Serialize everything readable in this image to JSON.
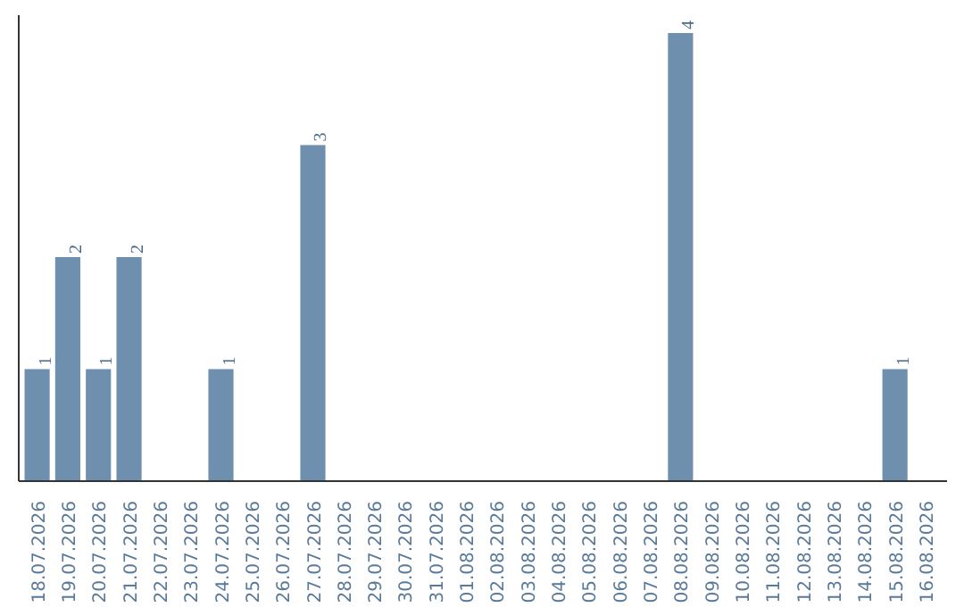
{
  "chart_data": {
    "type": "bar",
    "categories": [
      "18.07.2026",
      "19.07.2026",
      "20.07.2026",
      "21.07.2026",
      "22.07.2026",
      "23.07.2026",
      "24.07.2026",
      "25.07.2026",
      "26.07.2026",
      "27.07.2026",
      "28.07.2026",
      "29.07.2026",
      "30.07.2026",
      "31.07.2026",
      "01.08.2026",
      "02.08.2026",
      "03.08.2026",
      "04.08.2026",
      "05.08.2026",
      "06.08.2026",
      "07.08.2026",
      "08.08.2026",
      "09.08.2026",
      "10.08.2026",
      "11.08.2026",
      "12.08.2026",
      "13.08.2026",
      "14.08.2026",
      "15.08.2026",
      "16.08.2026"
    ],
    "values": [
      1,
      2,
      1,
      2,
      0,
      0,
      1,
      0,
      0,
      3,
      0,
      0,
      0,
      0,
      0,
      0,
      0,
      0,
      0,
      0,
      0,
      4,
      0,
      0,
      0,
      0,
      0,
      0,
      1,
      0
    ],
    "value_labels": [
      "1",
      "2",
      "1",
      "2",
      null,
      null,
      "1",
      null,
      null,
      "3",
      null,
      null,
      null,
      null,
      null,
      null,
      null,
      null,
      null,
      null,
      null,
      "4",
      null,
      null,
      null,
      null,
      null,
      null,
      "1",
      null
    ],
    "color": "#6f8fae",
    "grid": false
  }
}
